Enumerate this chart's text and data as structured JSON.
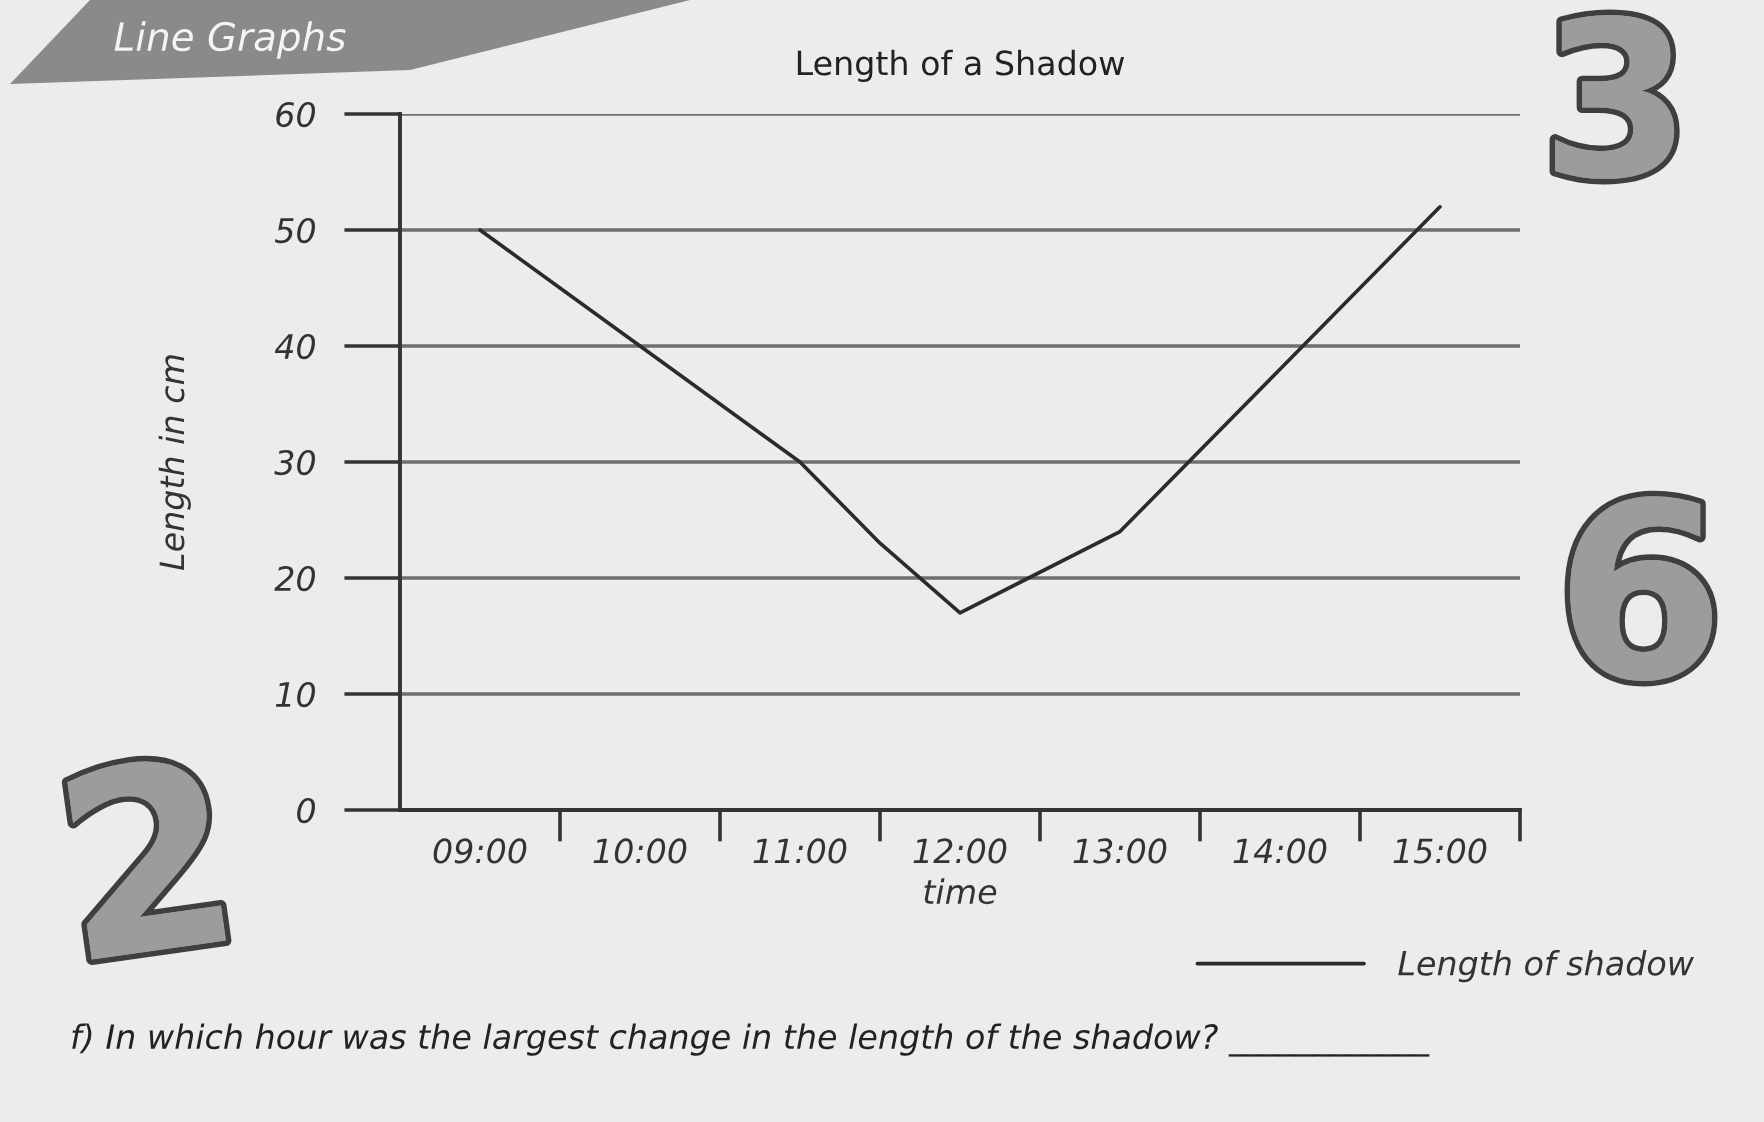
{
  "chart_data": {
    "type": "line",
    "title": "Length of a Shadow",
    "xlabel": "time",
    "ylabel": "Length in cm",
    "x": [
      9,
      10,
      11,
      11.5,
      12,
      13,
      14,
      15
    ],
    "series": [
      {
        "name": "Length of shadow",
        "color": "#2b2b2b",
        "values": [
          50,
          40,
          30,
          23,
          17,
          24,
          38,
          52
        ]
      }
    ],
    "xlim": [
      8.5,
      15.5
    ],
    "xticks": [
      {
        "value": 9,
        "label": "09:00"
      },
      {
        "value": 9.5,
        "label": null
      },
      {
        "value": 10,
        "label": "10:00"
      },
      {
        "value": 10.5,
        "label": null
      },
      {
        "value": 11,
        "label": "11:00"
      },
      {
        "value": 11.5,
        "label": null
      },
      {
        "value": 12,
        "label": "12:00"
      },
      {
        "value": 12.5,
        "label": null
      },
      {
        "value": 13,
        "label": "13:00"
      },
      {
        "value": 13.5,
        "label": null
      },
      {
        "value": 14,
        "label": "14:00"
      },
      {
        "value": 14.5,
        "label": null
      },
      {
        "value": 15,
        "label": "15:00"
      },
      {
        "value": 15.5,
        "label": null
      }
    ],
    "ylim": [
      0,
      60
    ],
    "yticks": [
      0,
      10,
      20,
      30,
      40,
      50,
      60
    ],
    "grid": "y",
    "legend": "bottom right",
    "marker": "none",
    "line_style": "solid",
    "annotations": [
      "Line Graphs",
      "3",
      "6",
      "2",
      "f) In which hour was the largest change in the length of the shadow? ____________"
    ]
  }
}
